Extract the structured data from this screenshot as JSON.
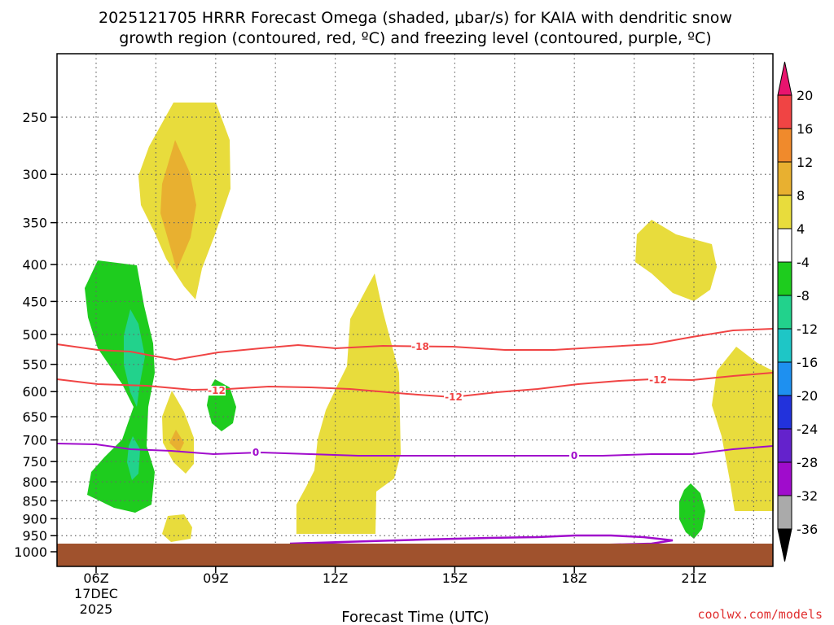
{
  "chart_data": {
    "type": "contour",
    "title_line1": "2025121705 HRRR Forecast Omega (shaded, μbar/s) for KAIA with dendritic snow",
    "title_line2": "growth region (contoured, red, ºC) and freezing level (contoured, purple, ºC)",
    "xlabel": "Forecast Time (UTC)",
    "credit": "coolwx.com/models",
    "x_ticks": [
      "06Z",
      "09Z",
      "12Z",
      "15Z",
      "18Z",
      "21Z"
    ],
    "x_date": [
      "17DEC",
      "2025"
    ],
    "y_ticks": [
      250,
      300,
      350,
      400,
      450,
      500,
      550,
      600,
      650,
      700,
      750,
      800,
      850,
      900,
      950,
      1000
    ],
    "colorbar_labels": [
      20,
      16,
      12,
      8,
      4,
      -4,
      -8,
      -12,
      -16,
      -20,
      -24,
      -28,
      -32,
      -36
    ],
    "colorbar_colors": [
      "#e8146e",
      "#f04444",
      "#f08a2c",
      "#e8b030",
      "#e8dc3c",
      "#ffffff",
      "#1ecc1e",
      "#22d28c",
      "#1ec6c6",
      "#1e90f0",
      "#2232dc",
      "#6422cc",
      "#a00ccc",
      "#aaaaaa",
      "#000000"
    ],
    "contour_labels": {
      "dgz_top": "-18",
      "dgz_bottom": "-12",
      "freezing": "0"
    },
    "colors": {
      "dgz": "#f04444",
      "freezing": "#a00ccc",
      "ground": "#a0522d",
      "omega_4": "#e8dc3c",
      "omega_8": "#e8b030",
      "omega_neg4": "#1ecc1e",
      "omega_neg8": "#22d28c"
    }
  }
}
